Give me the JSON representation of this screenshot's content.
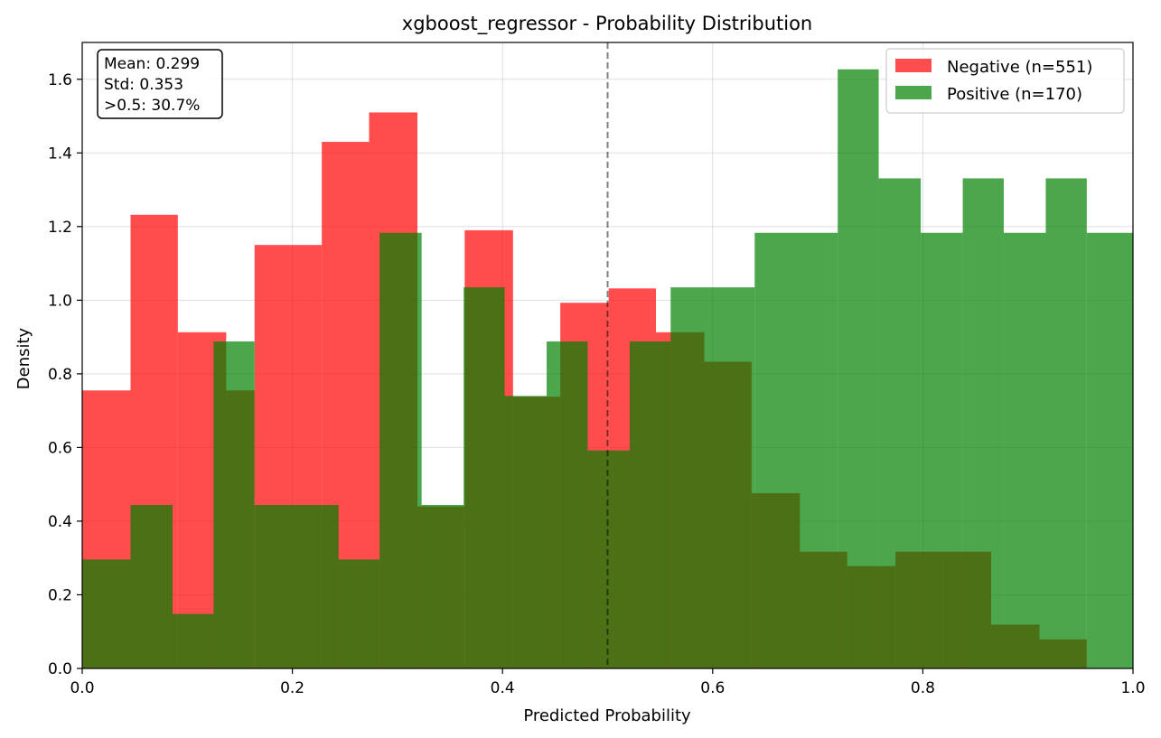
{
  "chart_data": {
    "type": "histogram",
    "title": "xgboost_regressor - Probability Distribution",
    "xlabel": "Predicted Probability",
    "ylabel": "Density",
    "xlim": [
      0,
      1
    ],
    "ylim": [
      0,
      1.7
    ],
    "xticks": [
      "0.0",
      "0.2",
      "0.4",
      "0.6",
      "0.8",
      "1.0"
    ],
    "yticks": [
      "0.0",
      "0.2",
      "0.4",
      "0.6",
      "0.8",
      "1.0",
      "1.2",
      "1.4",
      "1.6"
    ],
    "grid": true,
    "threshold": 0.5,
    "stats_box": {
      "lines": [
        "Mean: 0.299",
        "Std: 0.353",
        ">0.5: 30.7%"
      ]
    },
    "legend_position": "top-right",
    "series": [
      {
        "name": "Negative (n=551)",
        "color": "#ff0000",
        "opacity": 0.7,
        "bins": [
          [
            0.0,
            0.046,
            0.755
          ],
          [
            0.046,
            0.091,
            1.232
          ],
          [
            0.091,
            0.137,
            0.913
          ],
          [
            0.137,
            0.164,
            0.755
          ],
          [
            0.164,
            0.228,
            1.15
          ],
          [
            0.228,
            0.273,
            1.43
          ],
          [
            0.273,
            0.319,
            1.51
          ],
          [
            0.319,
            0.364,
            0.44
          ],
          [
            0.364,
            0.41,
            1.19
          ],
          [
            0.41,
            0.455,
            0.738
          ],
          [
            0.455,
            0.501,
            0.993
          ],
          [
            0.501,
            0.546,
            1.032
          ],
          [
            0.546,
            0.592,
            0.913
          ],
          [
            0.592,
            0.637,
            0.833
          ],
          [
            0.637,
            0.683,
            0.476
          ],
          [
            0.683,
            0.728,
            0.317
          ],
          [
            0.728,
            0.774,
            0.278
          ],
          [
            0.774,
            0.82,
            0.317
          ],
          [
            0.82,
            0.865,
            0.317
          ],
          [
            0.865,
            0.911,
            0.119
          ],
          [
            0.911,
            0.956,
            0.079
          ]
        ]
      },
      {
        "name": "Positive (n=170)",
        "color": "#008000",
        "opacity": 0.7,
        "bins": [
          [
            0.0,
            0.046,
            0.296
          ],
          [
            0.046,
            0.086,
            0.444
          ],
          [
            0.086,
            0.125,
            0.148
          ],
          [
            0.125,
            0.164,
            0.888
          ],
          [
            0.164,
            0.244,
            0.444
          ],
          [
            0.244,
            0.283,
            0.296
          ],
          [
            0.283,
            0.323,
            1.183
          ],
          [
            0.323,
            0.363,
            0.444
          ],
          [
            0.363,
            0.402,
            1.035
          ],
          [
            0.402,
            0.442,
            0.74
          ],
          [
            0.442,
            0.481,
            0.888
          ],
          [
            0.481,
            0.521,
            0.592
          ],
          [
            0.521,
            0.56,
            0.888
          ],
          [
            0.56,
            0.64,
            1.035
          ],
          [
            0.64,
            0.719,
            1.183
          ],
          [
            0.719,
            0.758,
            1.627
          ],
          [
            0.758,
            0.798,
            1.331
          ],
          [
            0.798,
            0.838,
            1.183
          ],
          [
            0.838,
            0.877,
            1.331
          ],
          [
            0.877,
            0.917,
            1.183
          ],
          [
            0.917,
            0.956,
            1.331
          ],
          [
            0.956,
            1.0,
            1.183
          ]
        ]
      }
    ]
  }
}
